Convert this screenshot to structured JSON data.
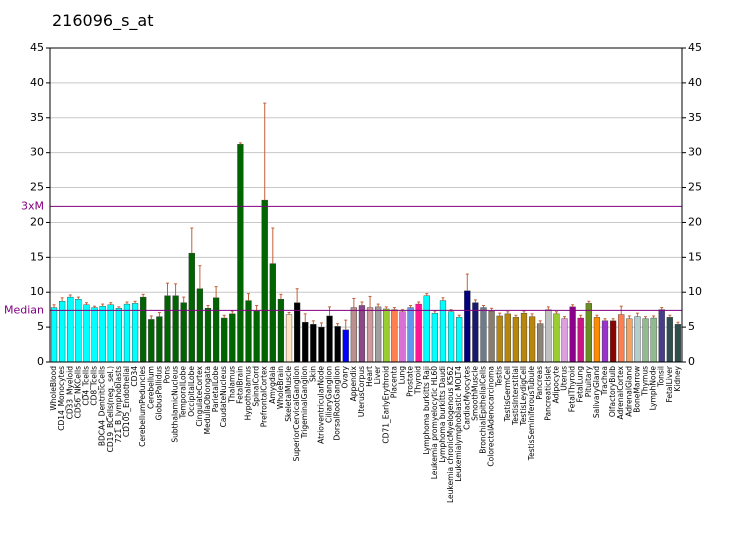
{
  "chart_data": {
    "type": "bar",
    "title": "216096_s_at",
    "categories": [
      "WholeBlood",
      "CD14_Monocytes",
      "CD33_Myeloid",
      "CD56_NKCells",
      "CD4_Tcells",
      "CD8_Tcells",
      "BDCA4_DentriticCells",
      "CD19_BCells(neg._sel.)",
      "721_B_lymphoblasts",
      "CD105_Endothelial",
      "CD34",
      "CerebellumPeduncles",
      "Cerebellum",
      "GlobusPallidus",
      "Pons",
      "SubthalamicNucleus",
      "TemporalLobe",
      "OccipitalLobe",
      "CingulateCortex",
      "MedullaOblongata",
      "ParietalLobe",
      "CaudateNucleus",
      "Thalamus",
      "FetalBrain",
      "Hypothalamus",
      "SpinalCord",
      "PrefrontalCortex",
      "Amygdala",
      "WholeBrain",
      "SkeletalMuscle",
      "SuperiorCervicalGanglion",
      "TrigeminalGanglion",
      "Skin",
      "AtrioventricularNode",
      "CiliaryGanglion",
      "DorsalRootGanglion",
      "Ovary",
      "Appendix",
      "UterusCorpus",
      "Heart",
      "Liver",
      "CD71_EarlyErythroid",
      "Placenta",
      "Lung",
      "Prostate",
      "Thyroid",
      "Lymphoma burkitts Raji",
      "Leukemia promyelocytic HL60",
      "Lymphoma burkitts Daudi",
      "Leukemia chronicMyelogenous K562",
      "Leukemialymphoblastic MOLT4",
      "CardiacMyocytes",
      "SmoothMuscle",
      "BronchialEpithelialCells",
      "ColorectalAdenocarcinoma",
      "Testis",
      "TestisGermCell",
      "TestisInterstitial",
      "TestisLeydigCell",
      "TestisSeminiferousTubule",
      "Pancreas",
      "PancreaticIslet",
      "Adipocyte",
      "Uterus",
      "FetalThyroid",
      "FetalLung",
      "Pituitary",
      "SalivaryGland",
      "Trachea",
      "OlfactoryBulb",
      "AdrenalCortex",
      "AdrenalGland",
      "BoneMarrow",
      "Thymus",
      "LymphNode",
      "Tonsil",
      "FetalLiver",
      "Kidney"
    ],
    "values": [
      7.8,
      8.7,
      9.3,
      9.0,
      8.2,
      7.8,
      8.0,
      8.2,
      7.7,
      8.3,
      8.4,
      9.3,
      6.1,
      6.5,
      9.5,
      9.5,
      8.5,
      15.6,
      10.5,
      7.7,
      9.2,
      6.3,
      6.9,
      31.2,
      8.8,
      7.3,
      23.2,
      14.1,
      9.0,
      6.8,
      8.5,
      5.7,
      5.4,
      5.0,
      6.6,
      5.1,
      4.6,
      7.8,
      8.1,
      7.8,
      7.9,
      7.6,
      7.5,
      7.2,
      7.8,
      8.3,
      9.5,
      7.0,
      8.8,
      7.2,
      6.4,
      10.2,
      8.5,
      7.8,
      7.3,
      6.6,
      6.9,
      6.4,
      7.0,
      6.5,
      5.5,
      7.5,
      6.9,
      6.2,
      7.9,
      6.3,
      8.4,
      6.4,
      5.9,
      5.9,
      6.8,
      6.2,
      6.5,
      6.2,
      6.3,
      7.5,
      6.4,
      5.4
    ],
    "errors": [
      0.4,
      0.5,
      0.3,
      0.3,
      0.3,
      0.2,
      0.3,
      0.3,
      0.2,
      0.3,
      0.3,
      0.4,
      0.5,
      0.6,
      1.8,
      1.7,
      0.8,
      3.6,
      3.3,
      0.4,
      1.6,
      0.4,
      0.4,
      0.2,
      1.0,
      0.8,
      13.9,
      5.1,
      0.7,
      0.3,
      2.0,
      1.2,
      0.5,
      0.6,
      1.3,
      0.4,
      1.4,
      1.3,
      0.5,
      1.6,
      0.4,
      0.3,
      0.3,
      0.3,
      0.3,
      0.3,
      0.3,
      0.3,
      0.4,
      0.3,
      0.3,
      2.4,
      0.4,
      0.3,
      0.4,
      0.4,
      0.3,
      0.3,
      0.3,
      0.4,
      0.4,
      0.4,
      0.3,
      0.3,
      0.3,
      0.4,
      0.3,
      0.3,
      0.3,
      0.3,
      1.2,
      0.4,
      0.5,
      0.3,
      0.3,
      0.3,
      0.3,
      0.3
    ],
    "colors": [
      "#00ffff",
      "#00ffff",
      "#00ffff",
      "#00ffff",
      "#00ffff",
      "#00ffff",
      "#00ffff",
      "#00ffff",
      "#00ffff",
      "#00ffff",
      "#00ffff",
      "#006400",
      "#006400",
      "#006400",
      "#006400",
      "#006400",
      "#006400",
      "#006400",
      "#006400",
      "#006400",
      "#006400",
      "#006400",
      "#006400",
      "#006400",
      "#006400",
      "#006400",
      "#006400",
      "#006400",
      "#006400",
      "#ffe4c4",
      "#000000",
      "#000000",
      "#000000",
      "#000000",
      "#000000",
      "#000000",
      "#0000ff",
      "#bc8f8f",
      "#8b4789",
      "#cd9b9b",
      "#a0a0a0",
      "#9acd32",
      "#ff7f50",
      "#da70d6",
      "#6495ed",
      "#ff1493",
      "#00ffff",
      "#00ffff",
      "#00ffff",
      "#00ffff",
      "#00ffff",
      "#000080",
      "#191970",
      "#6e7b8b",
      "#8b7d6b",
      "#b8860b",
      "#b8860b",
      "#b8860b",
      "#b8860b",
      "#b8860b",
      "#8b8378",
      "#c0c0c0",
      "#9acd32",
      "#dda0dd",
      "#8b008b",
      "#c71585",
      "#6b8e23",
      "#ff8c00",
      "#9932cc",
      "#8b0000",
      "#ff7f50",
      "#f4a460",
      "#b4cdcd",
      "#8fbc8f",
      "#8fbc8f",
      "#483d8b",
      "#2f4f4f",
      "#2f4f4f"
    ],
    "reference_lines": [
      {
        "label": "3xM",
        "value": 22.3,
        "color": "#800080"
      },
      {
        "label": "Median",
        "value": 7.4,
        "color": "#800080"
      }
    ],
    "error_color": "#c0623a",
    "ylim": [
      0,
      45
    ],
    "yticks": [
      0,
      5,
      10,
      15,
      20,
      25,
      30,
      35,
      40,
      45
    ],
    "y2lim": [
      0,
      45
    ],
    "y2ticks": [
      0,
      5,
      10,
      15,
      20,
      25,
      30,
      35,
      40,
      45
    ],
    "grid": true
  }
}
